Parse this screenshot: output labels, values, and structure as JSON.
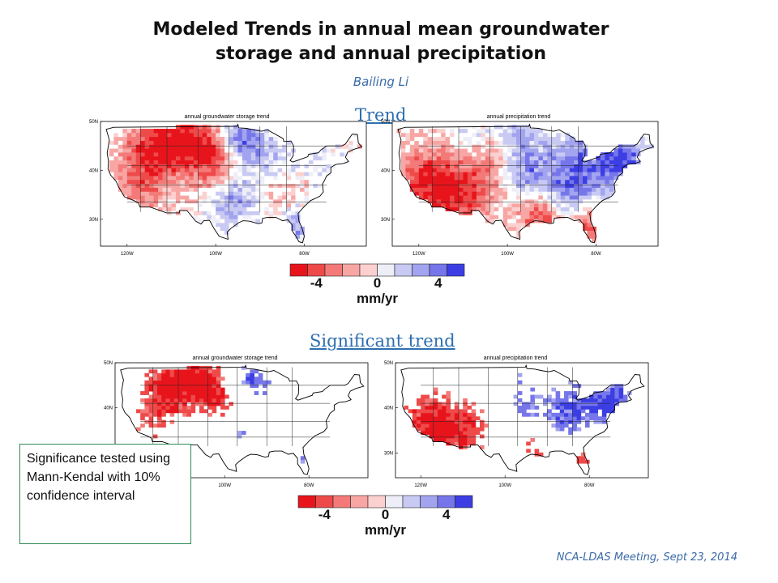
{
  "slide": {
    "title_line1": "Modeled Trends in annual mean groundwater",
    "title_line2": "storage and annual precipitation",
    "author": "Bailing Li",
    "footer": "NCA-LDAS Meeting, Sept 23, 2014",
    "note": "Significance tested using Mann-Kendal with 10% confidence interval"
  },
  "sections": {
    "trend": "Trend",
    "significant": "Significant trend"
  },
  "maps": {
    "gw_title": "annual groundwater storage trend",
    "precip_title": "annual precipitation trend",
    "lat_labels": [
      "50N",
      "40N",
      "30N"
    ],
    "lon_labels": [
      "120W",
      "100W",
      "80W"
    ]
  },
  "colorbar": {
    "colors": [
      "#e8141c",
      "#ee4a4a",
      "#f37a78",
      "#f8a6a4",
      "#fbd0cf",
      "#eeeef8",
      "#c9caf3",
      "#a2a4ef",
      "#7676ea",
      "#3c3ee4"
    ],
    "ticks": [
      "-4",
      "0",
      "4"
    ],
    "unit": "mm/yr"
  }
}
